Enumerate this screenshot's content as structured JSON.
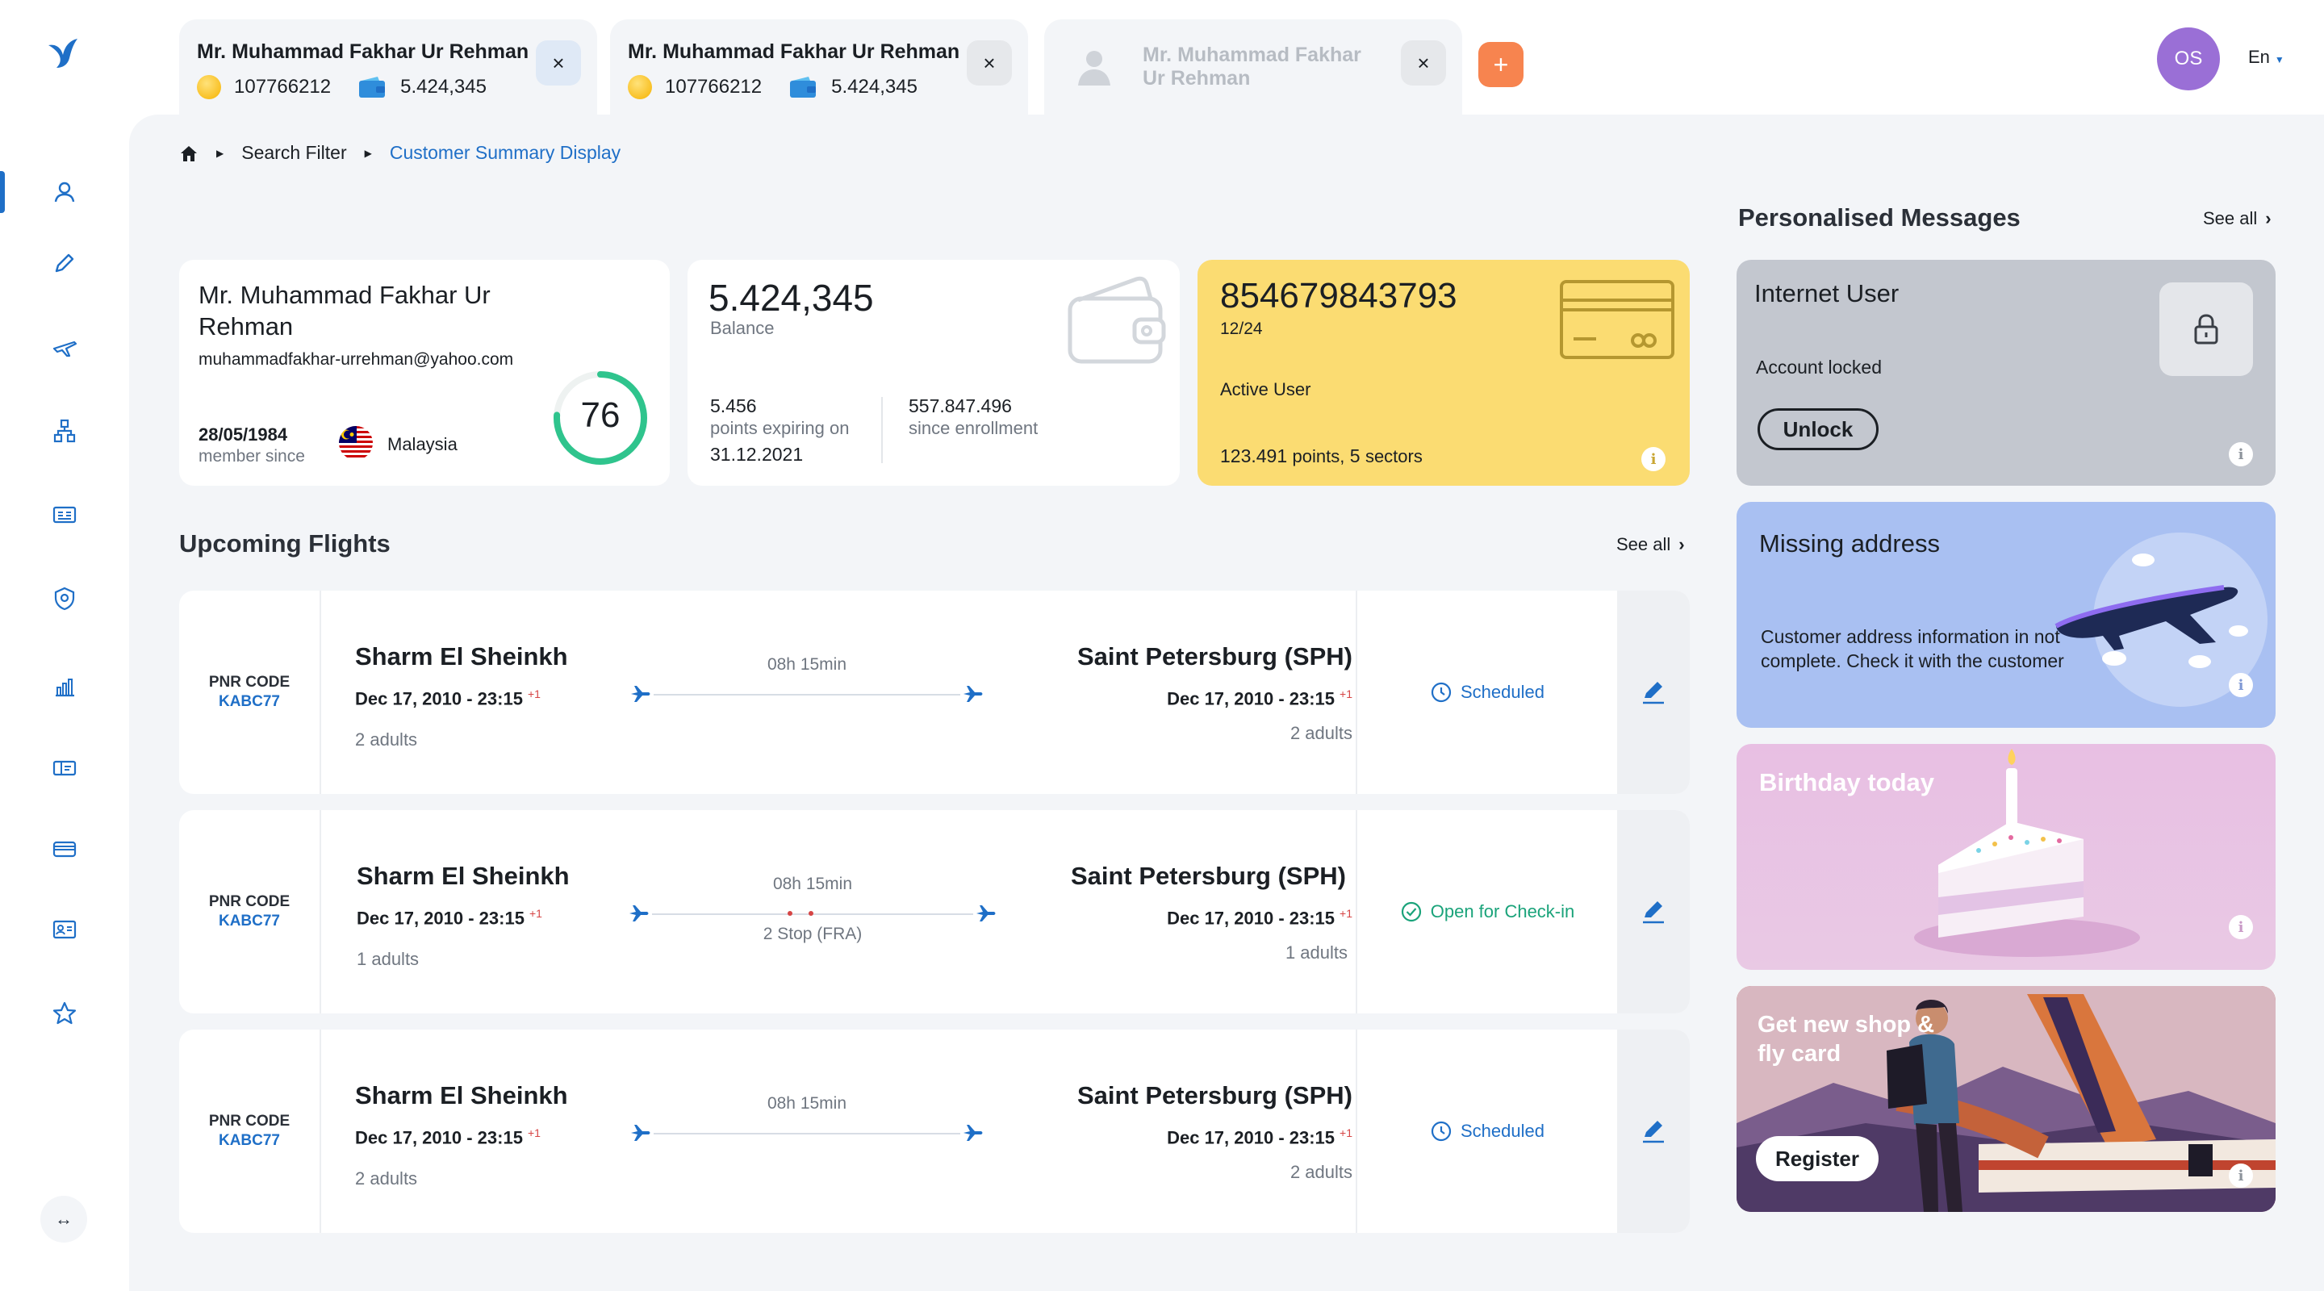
{
  "tabs": [
    {
      "name": "Mr. Muhammad Fakhar Ur Rehman",
      "points": "107766212",
      "wallet": "5.424,345",
      "close": "×"
    },
    {
      "name": "Mr. Muhammad Fakhar Ur Rehman",
      "points": "107766212",
      "wallet": "5.424,345",
      "close": "×"
    },
    {
      "name": "Mr. Muhammad Fakhar Ur Rehman",
      "close": "×"
    }
  ],
  "add_tab": "+",
  "user": {
    "initials": "OS"
  },
  "language": "En",
  "collapse_glyph": "↔",
  "breadcrumb": {
    "item1": "Search Filter",
    "item2": "Customer Summary Display"
  },
  "profile": {
    "name": "Mr. Muhammad Fakhar Ur Rehman",
    "email": "muhammadfakhar-urrehman@yahoo.com",
    "member_since_date": "28/05/1984",
    "member_since_label": "member since",
    "country": "Malaysia",
    "score": "76",
    "score_fraction": 0.76
  },
  "balance": {
    "value": "5.424,345",
    "label": "Balance",
    "expiring_points": "5.456",
    "expiring_label": "points expiring on",
    "expiring_date": "31.12.2021",
    "enrollment_points": "557.847.496",
    "enrollment_label": "since enrollment"
  },
  "member_card": {
    "number": "854679843793",
    "expiry": "12/24",
    "status": "Active User",
    "points": "123.491",
    "points_label": "points,",
    "sectors": "5",
    "sectors_label": "sectors",
    "info": "i"
  },
  "flights_section": {
    "title": "Upcoming Flights",
    "see_all": "See all"
  },
  "flights": [
    {
      "pnr_label": "PNR CODE",
      "pnr": "KABC77",
      "from": "Sharm El Sheinkh",
      "from_date": "Dec 17, 2010 - 23:15",
      "from_offset": "+1",
      "from_pax": "2 adults",
      "duration": "08h 15min",
      "stops": "",
      "to": "Saint Petersburg (SPH)",
      "to_date": "Dec 17, 2010 - 23:15",
      "to_offset": "+1",
      "to_pax": "2 adults",
      "status": "Scheduled",
      "status_color": "#1f6fc7"
    },
    {
      "pnr_label": "PNR CODE",
      "pnr": "KABC77",
      "from": "Sharm El Sheinkh",
      "from_date": "Dec 17, 2010 - 23:15",
      "from_offset": "+1",
      "from_pax": "1 adults",
      "duration": "08h 15min",
      "stops": "2 Stop (FRA)",
      "to": "Saint Petersburg (SPH)",
      "to_date": "Dec 17, 2010 - 23:15",
      "to_offset": "+1",
      "to_pax": "1 adults",
      "status": "Open for Check-in",
      "status_color": "#1aa37a"
    },
    {
      "pnr_label": "PNR CODE",
      "pnr": "KABC77",
      "from": "Sharm El Sheinkh",
      "from_date": "Dec 17, 2010 - 23:15",
      "from_offset": "+1",
      "from_pax": "2 adults",
      "duration": "08h 15min",
      "stops": "",
      "to": "Saint Petersburg (SPH)",
      "to_date": "Dec 17, 2010 - 23:15",
      "to_offset": "+1",
      "to_pax": "2 adults",
      "status": "Scheduled",
      "status_color": "#1f6fc7"
    }
  ],
  "messages": {
    "title": "Personalised Messages",
    "see_all": "See all",
    "locked": {
      "title": "Internet User",
      "subtitle": "Account locked",
      "button": "Unlock",
      "info": "i"
    },
    "address": {
      "title": "Missing address",
      "body": "Customer address  information in not complete. Check it with the customer",
      "info": "i"
    },
    "birthday": {
      "title": "Birthday today",
      "info": "i"
    },
    "shop": {
      "title": "Get new shop & fly card",
      "button": "Register",
      "info": "i"
    }
  },
  "colors": {
    "accent": "#1f6fc7",
    "card_yellow": "#fbdc72",
    "add_tab": "#f7844f",
    "avatar": "#9a6fd6",
    "success": "#1aa37a",
    "score_ring": "#2fc48d"
  },
  "icons": [
    "bird-logo-icon",
    "user-icon",
    "pencil-icon",
    "plane-icon",
    "hierarchy-icon",
    "id-card-icon",
    "shield-icon",
    "chart-icon",
    "ticket-icon",
    "credit-card-icon",
    "contact-card-icon",
    "star-icon",
    "home-icon",
    "lock-icon",
    "wallet-icon"
  ]
}
